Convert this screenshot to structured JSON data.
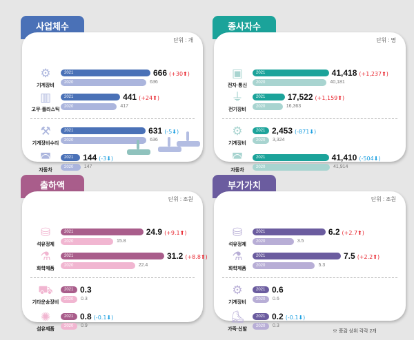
{
  "note": "※ 증감 상위 각각 2개",
  "panels": [
    {
      "id": "businesses",
      "title": "사업체수",
      "unit": "단위 : 개",
      "color_2021": "#4a71b7",
      "color_2020": "#abb5dd",
      "rows": [
        {
          "icon": "gear-wrench-icon",
          "glyph": "⚙",
          "label": "기계장비",
          "v2021": "666",
          "v2020": "636",
          "change": "(+30⬆)",
          "dir": "up"
        },
        {
          "icon": "factory-icon",
          "glyph": "▥",
          "label": "고무·플라스틱",
          "v2021": "441",
          "v2020": "417",
          "change": "(+24⬆)",
          "dir": "up"
        },
        {
          "icon": "robot-arm-icon",
          "glyph": "⚒",
          "label": "기계장비수리",
          "v2021": "631",
          "v2020": "636",
          "change": "(-5⬇)",
          "dir": "down"
        },
        {
          "icon": "car-icon",
          "glyph": "◚",
          "label": "자동차",
          "v2021": "144",
          "v2020": "147",
          "change": "(-3⬇)",
          "dir": "down"
        }
      ]
    },
    {
      "id": "employees",
      "title": "종사자수",
      "unit": "단위 : 명",
      "color_2021": "#1ba39a",
      "color_2020": "#a8d4d0",
      "rows": [
        {
          "icon": "chip-icon",
          "glyph": "▣",
          "label": "전자·통신",
          "v2021": "41,418",
          "v2020": "40,181",
          "change": "(+1,237⬆)",
          "dir": "up"
        },
        {
          "icon": "plug-icon",
          "glyph": "⏚",
          "label": "전기장비",
          "v2021": "17,522",
          "v2020": "16,363",
          "change": "(+1,159⬆)",
          "dir": "up"
        },
        {
          "icon": "gear-wrench-icon",
          "glyph": "⚙",
          "label": "기계장비",
          "v2021": "2,453",
          "v2020": "3,324",
          "change": "(-871⬇)",
          "dir": "down"
        },
        {
          "icon": "car-icon",
          "glyph": "◚",
          "label": "자동차",
          "v2021": "41,410",
          "v2020": "41,914",
          "change": "(-504⬇)",
          "dir": "down"
        }
      ]
    },
    {
      "id": "shipments",
      "title": "출하액",
      "unit": "단위 : 조원",
      "color_2021": "#a95d8b",
      "color_2020": "#f1b6d1",
      "rows": [
        {
          "icon": "oil-tank-icon",
          "glyph": "⛁",
          "label": "석유정제",
          "v2021": "24.9",
          "v2020": "15.8",
          "change": "(+9.1⬆)",
          "dir": "up"
        },
        {
          "icon": "flask-icon",
          "glyph": "⚗",
          "label": "화학제품",
          "v2021": "31.2",
          "v2020": "22.4",
          "change": "(+8.8⬆)",
          "dir": "up"
        },
        {
          "icon": "truck-icon",
          "glyph": "⛟",
          "label": "기타운송장비",
          "v2021": "0.3",
          "v2020": "0.3",
          "change": "",
          "dir": ""
        },
        {
          "icon": "yarn-icon",
          "glyph": "✺",
          "label": "섬유제품",
          "v2021": "0.8",
          "v2020": "0.9",
          "change": "(-0.1⬇)",
          "dir": "down"
        }
      ]
    },
    {
      "id": "value-added",
      "title": "부가가치",
      "unit": "단위 : 조원",
      "color_2021": "#6b5c9f",
      "color_2020": "#b8aed6",
      "rows": [
        {
          "icon": "oil-tank-icon",
          "glyph": "⛁",
          "label": "석유정제",
          "v2021": "6.2",
          "v2020": "3.5",
          "change": "(+2.7⬆)",
          "dir": "up"
        },
        {
          "icon": "flask-icon",
          "glyph": "⚗",
          "label": "화학제품",
          "v2021": "7.5",
          "v2020": "5.3",
          "change": "(+2.2⬆)",
          "dir": "up"
        },
        {
          "icon": "gear-wrench-icon",
          "glyph": "⚙",
          "label": "기계장비",
          "v2021": "0.6",
          "v2020": "0.6",
          "change": "",
          "dir": ""
        },
        {
          "icon": "boot-icon",
          "glyph": "⛸",
          "label": "가죽·신발",
          "v2021": "0.2",
          "v2020": "0.3",
          "change": "(-0.1⬇)",
          "dir": "down"
        }
      ]
    }
  ],
  "year_2021": "2021",
  "year_2020": "2020",
  "chart_data": {
    "type": "bar",
    "categories_by_panel": true,
    "series_names": [
      "2021",
      "2020"
    ],
    "panels": [
      {
        "title": "사업체수",
        "unit": "개",
        "categories": [
          "기계장비",
          "고무·플라스틱",
          "기계장비수리",
          "자동차"
        ],
        "2021": [
          666,
          441,
          631,
          144
        ],
        "2020": [
          636,
          417,
          636,
          147
        ]
      },
      {
        "title": "종사자수",
        "unit": "명",
        "categories": [
          "전자·통신",
          "전기장비",
          "기계장비",
          "자동차"
        ],
        "2021": [
          41418,
          17522,
          2453,
          41410
        ],
        "2020": [
          40181,
          16363,
          3324,
          41914
        ]
      },
      {
        "title": "출하액",
        "unit": "조원",
        "categories": [
          "석유정제",
          "화학제품",
          "기타운송장비",
          "섬유제품"
        ],
        "2021": [
          24.9,
          31.2,
          0.3,
          0.8
        ],
        "2020": [
          15.8,
          22.4,
          0.3,
          0.9
        ]
      },
      {
        "title": "부가가치",
        "unit": "조원",
        "categories": [
          "석유정제",
          "화학제품",
          "기계장비",
          "가죽·신발"
        ],
        "2021": [
          6.2,
          7.5,
          0.6,
          0.2
        ],
        "2020": [
          3.5,
          5.3,
          0.6,
          0.3
        ]
      }
    ]
  }
}
